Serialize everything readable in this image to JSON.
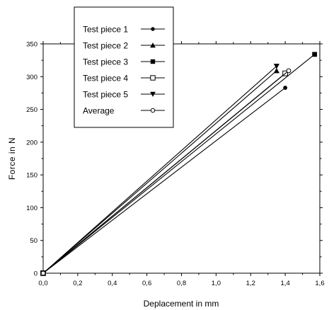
{
  "chart_data": {
    "type": "line",
    "xlabel": "Deplacement in mm",
    "ylabel": "Force in N",
    "xlim": [
      0,
      1.6
    ],
    "ylim": [
      0,
      350
    ],
    "x_ticks": [
      0.0,
      0.2,
      0.4,
      0.6,
      0.8,
      1.0,
      1.2,
      1.4,
      1.6
    ],
    "x_tick_labels": [
      "0,0",
      "0,2",
      "0,4",
      "0,6",
      "0,8",
      "1,0",
      "1,2",
      "1,4",
      "1,6"
    ],
    "y_ticks": [
      0,
      50,
      100,
      150,
      200,
      250,
      300,
      350
    ],
    "y_tick_labels": [
      "0",
      "50",
      "100",
      "150",
      "200",
      "250",
      "300",
      "350"
    ],
    "grid": false,
    "legend_position": "top-left",
    "series": [
      {
        "name": "Test piece 1",
        "marker": "circle-filled",
        "x": [
          0,
          1.4
        ],
        "y": [
          0,
          283
        ]
      },
      {
        "name": "Test piece 2",
        "marker": "triangle-up-filled",
        "x": [
          0,
          1.35
        ],
        "y": [
          0,
          309
        ]
      },
      {
        "name": "Test piece 3",
        "marker": "square-filled",
        "x": [
          0,
          1.57
        ],
        "y": [
          0,
          334
        ]
      },
      {
        "name": "Test piece 4",
        "marker": "square-open",
        "x": [
          0,
          1.4
        ],
        "y": [
          0,
          305
        ]
      },
      {
        "name": "Test piece 5",
        "marker": "triangle-down-filled",
        "x": [
          0,
          1.35
        ],
        "y": [
          0,
          316
        ]
      },
      {
        "name": "Average",
        "marker": "circle-open",
        "x": [
          0,
          1.42
        ],
        "y": [
          0,
          309
        ]
      }
    ]
  }
}
